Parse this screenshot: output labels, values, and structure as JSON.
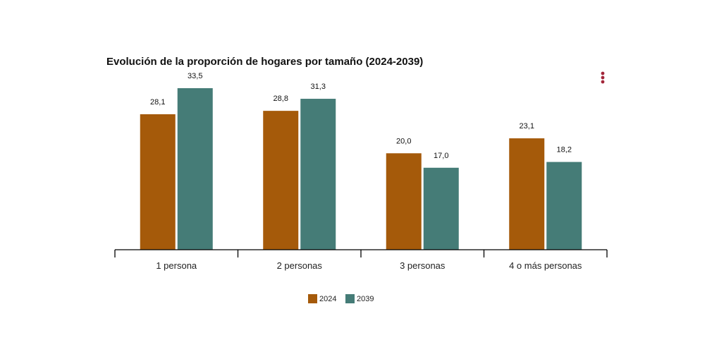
{
  "menu": {
    "icon": "vertical-ellipsis-icon",
    "color": "#a3263a"
  },
  "chart_data": {
    "type": "bar",
    "title": "Evolución de la proporción de hogares por tamaño (2024-2039)",
    "xlabel": "",
    "ylabel": "",
    "categories": [
      "1 persona",
      "2 personas",
      "3 personas",
      "4 o más personas"
    ],
    "series": [
      {
        "name": "2024",
        "color": "#a55a0a",
        "values": [
          28.1,
          28.8,
          20.0,
          23.1
        ],
        "labels": [
          "28,1",
          "28,8",
          "20,0",
          "23,1"
        ]
      },
      {
        "name": "2039",
        "color": "#457c77",
        "values": [
          33.5,
          31.3,
          17.0,
          18.2
        ],
        "labels": [
          "33,5",
          "31,3",
          "17,0",
          "18,2"
        ]
      }
    ],
    "ylim": [
      0,
      33.5
    ],
    "grid": false,
    "legend_position": "bottom-center"
  }
}
